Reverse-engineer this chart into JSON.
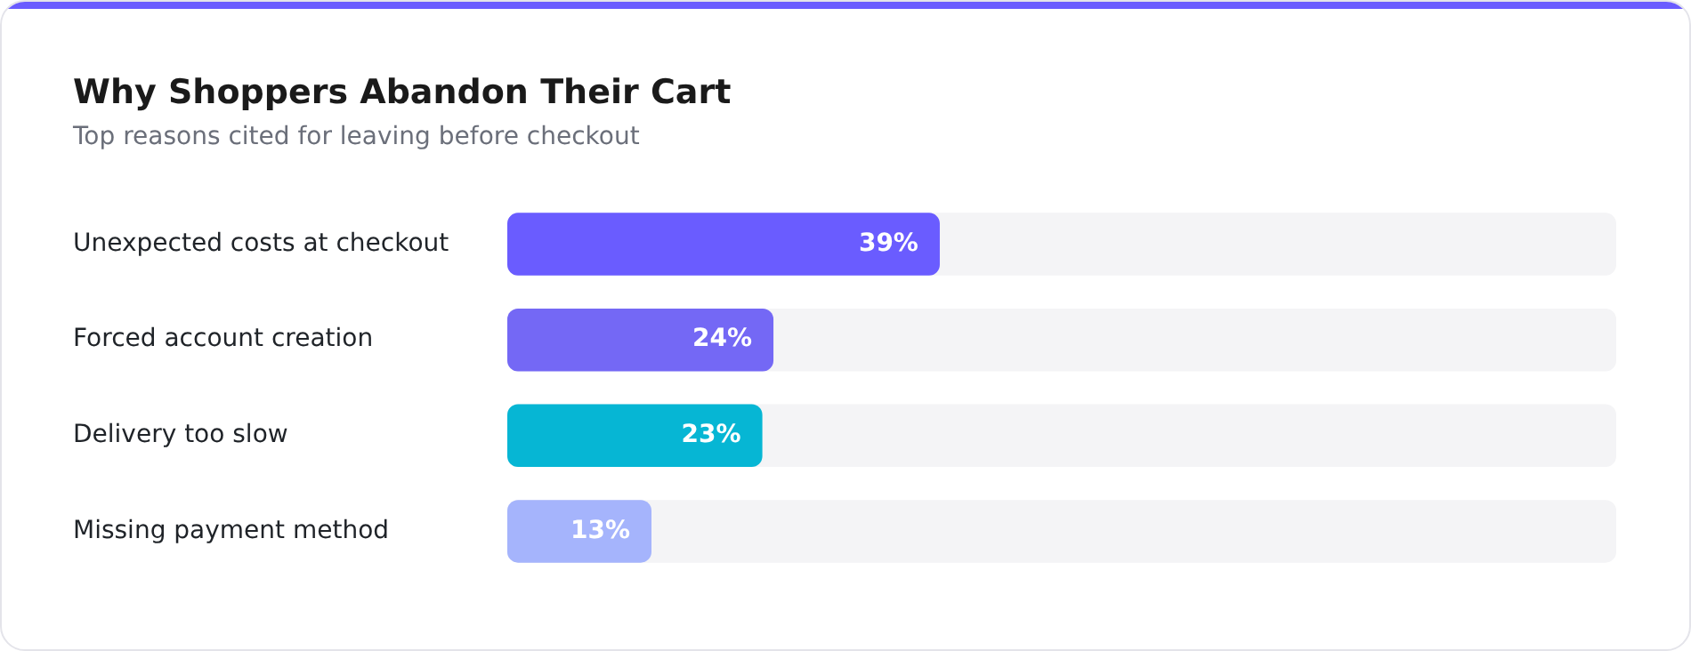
{
  "chart_data": {
    "type": "bar",
    "orientation": "horizontal",
    "title": "Why Shoppers Abandon Their Cart",
    "subtitle": "Top reasons cited for leaving before checkout",
    "categories": [
      "Unexpected costs at checkout",
      "Forced account creation",
      "Delivery too slow",
      "Missing payment method"
    ],
    "values": [
      39,
      24,
      23,
      13
    ],
    "colors": [
      "#6a5cff",
      "#7468f5",
      "#06b6d4",
      "#a5b4fc"
    ],
    "value_labels": [
      "39%",
      "24%",
      "23%",
      "13%"
    ],
    "xlim": [
      0,
      100
    ],
    "grid": false,
    "legend": false
  }
}
